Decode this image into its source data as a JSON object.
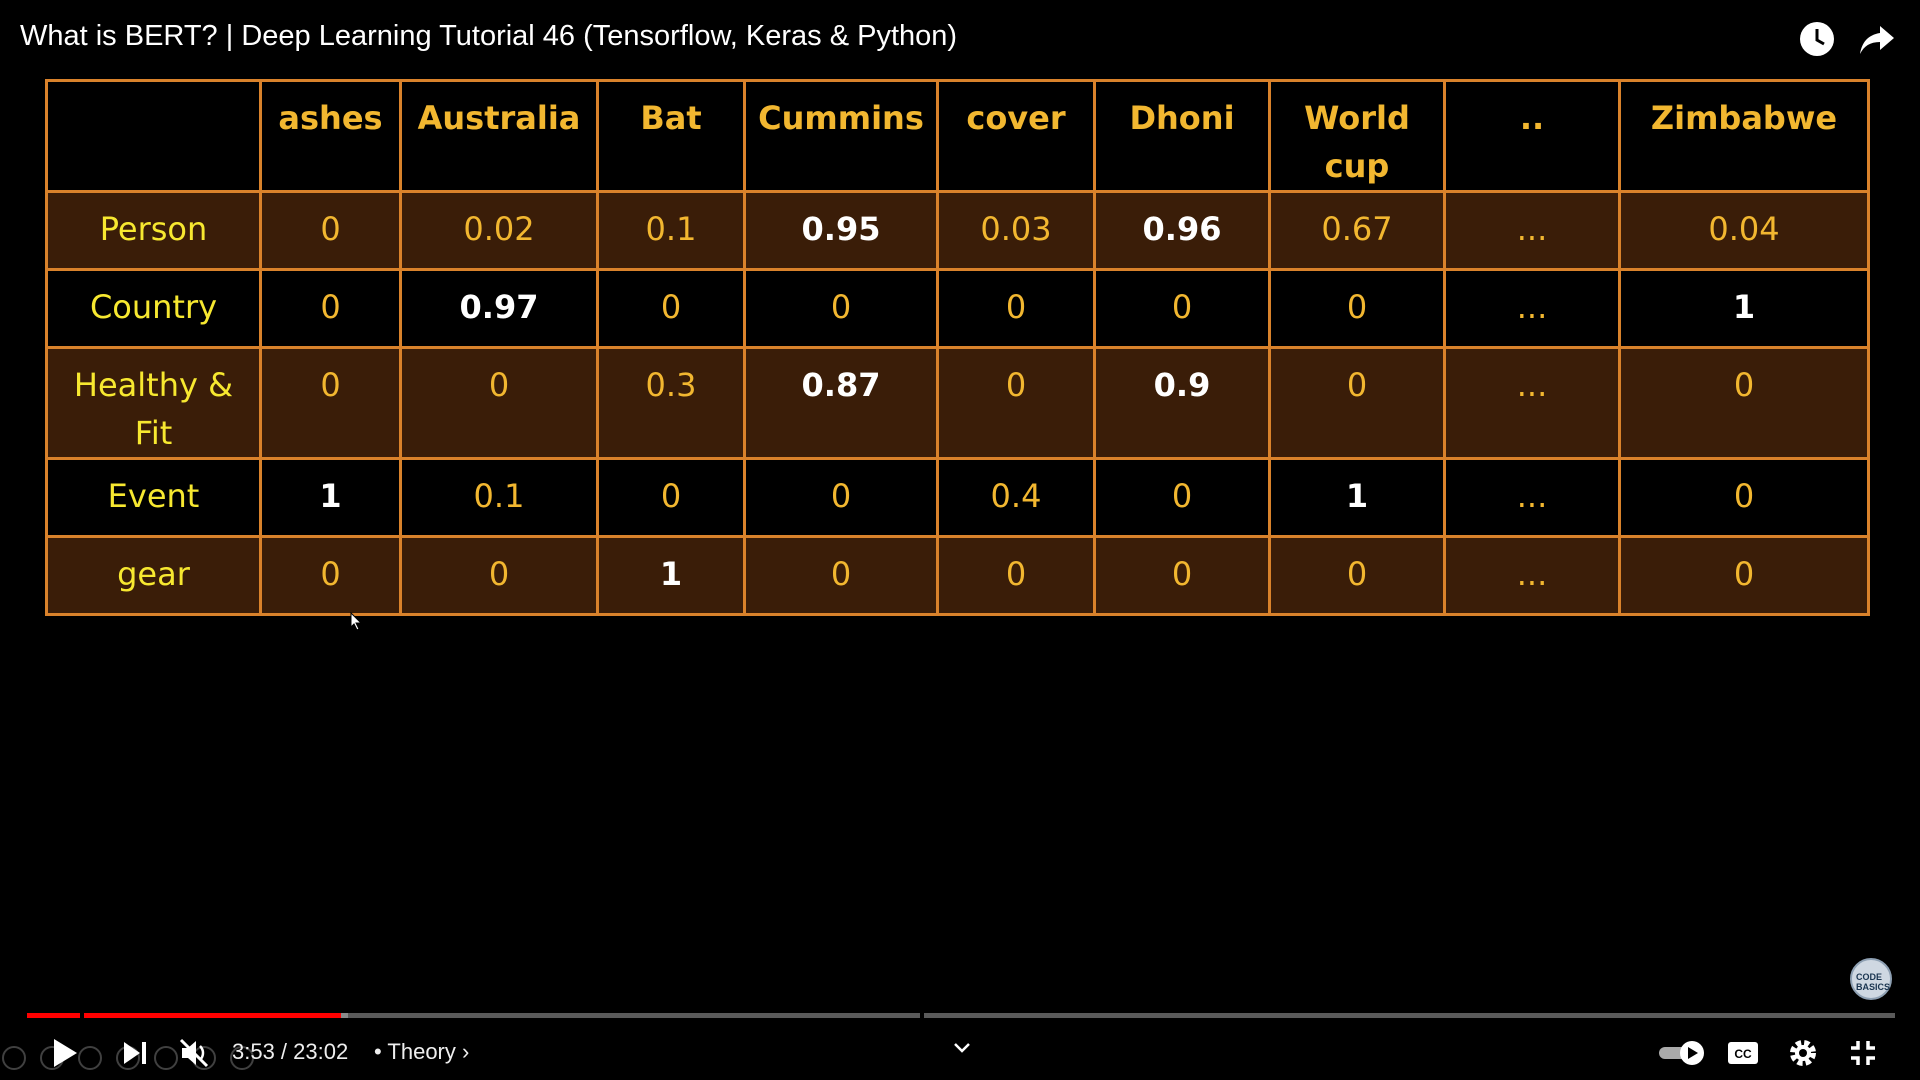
{
  "video": {
    "title": "What is BERT? | Deep Learning Tutorial 46 (Tensorflow, Keras & Python)"
  },
  "table": {
    "columns": [
      "",
      "ashes",
      "Australia",
      "Bat",
      "Cummins",
      "cover",
      "Dhoni",
      "World cup",
      "..",
      "Zimbabwe"
    ],
    "rows": [
      {
        "label": "Person",
        "cells": [
          "0",
          "0.02",
          "0.1",
          "0.95",
          "0.03",
          "0.96",
          "0.67",
          "...",
          "0.04"
        ]
      },
      {
        "label": "Country",
        "cells": [
          "0",
          "0.97",
          "0",
          "0",
          "0",
          "0",
          "0",
          "...",
          "1"
        ]
      },
      {
        "label": "Healthy & Fit",
        "cells": [
          "0",
          "0",
          "0.3",
          "0.87",
          "0",
          "0.9",
          "0",
          "...",
          "0"
        ]
      },
      {
        "label": "Event",
        "cells": [
          "1",
          "0.1",
          "0",
          "0",
          "0.4",
          "0",
          "1",
          "...",
          "0"
        ]
      },
      {
        "label": "gear",
        "cells": [
          "0",
          "0",
          "1",
          "0",
          "0",
          "0",
          "0",
          "...",
          "0"
        ]
      }
    ]
  },
  "logo": {
    "text": "CODE BASICS"
  },
  "player": {
    "time": "3:53 / 23:02",
    "chapter": "• Theory ›",
    "played_fraction": 0.168,
    "loaded_fraction": 0.172,
    "accent_color": "#ff0000"
  },
  "icons": [
    "watch-later-icon",
    "share-icon",
    "play-icon",
    "next-icon",
    "mute-icon",
    "autoplay-toggle-icon",
    "captions-icon",
    "settings-icon",
    "exit-fullscreen-icon",
    "expand-chevron-icon"
  ]
}
